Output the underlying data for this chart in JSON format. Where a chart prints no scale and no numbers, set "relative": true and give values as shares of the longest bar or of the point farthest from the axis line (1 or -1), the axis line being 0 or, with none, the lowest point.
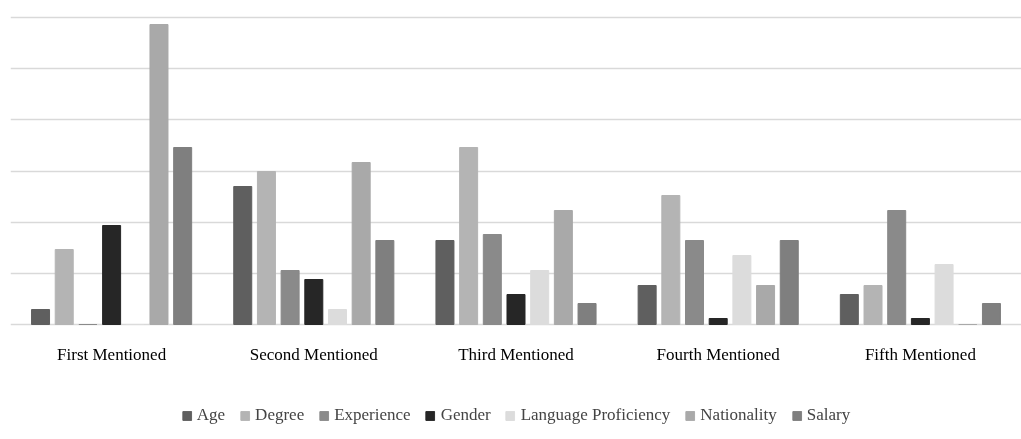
{
  "chart_data": {
    "type": "bar",
    "relative": true,
    "categories": [
      "First Mentioned",
      "Second Mentioned",
      "Third Mentioned",
      "Fourth Mentioned",
      "Fifth Mentioned"
    ],
    "series": [
      {
        "name": "Age",
        "color": "#5f5f5f",
        "values": [
          0.05,
          0.46,
          0.28,
          0.13,
          0.1
        ]
      },
      {
        "name": "Degree",
        "color": "#b4b4b4",
        "values": [
          0.25,
          0.51,
          0.59,
          0.43,
          0.13
        ]
      },
      {
        "name": "Experience",
        "color": "#8a8a8a",
        "values": [
          0,
          0.18,
          0.3,
          0.28,
          0.38
        ]
      },
      {
        "name": "Gender",
        "color": "#262626",
        "values": [
          0.33,
          0.15,
          0.1,
          0.02,
          0.02
        ]
      },
      {
        "name": "Language Proficiency",
        "color": "#dcdcdc",
        "values": [
          0,
          0.05,
          0.18,
          0.23,
          0.2
        ]
      },
      {
        "name": "Nationality",
        "color": "#a9a9a9",
        "values": [
          1,
          0.54,
          0.38,
          0.13,
          0
        ]
      },
      {
        "name": "Salary",
        "color": "#7f7f7f",
        "values": [
          0.59,
          0.28,
          0.07,
          0.28,
          0.07
        ]
      }
    ],
    "grid": "y",
    "legend": "bottom"
  }
}
